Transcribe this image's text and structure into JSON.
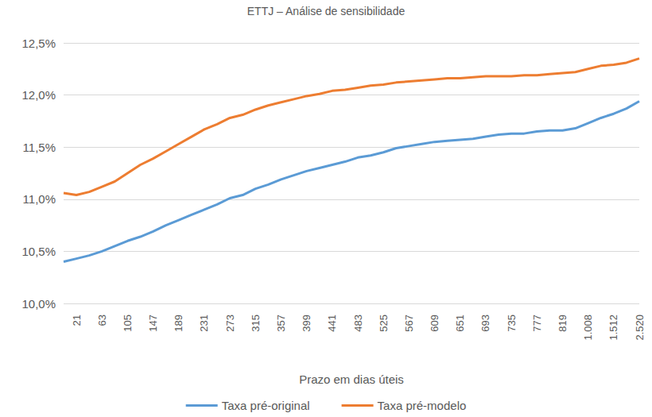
{
  "chart_data": {
    "type": "line",
    "title": "ETTJ – Análise de sensibilidade",
    "x_label": "Prazo em dias úteis",
    "categories": [
      null,
      "21",
      null,
      "63",
      null,
      "105",
      null,
      "147",
      null,
      "189",
      null,
      "231",
      null,
      "273",
      null,
      "315",
      null,
      "357",
      null,
      "399",
      null,
      "441",
      null,
      "483",
      null,
      "525",
      null,
      "567",
      null,
      "609",
      null,
      "651",
      null,
      "693",
      null,
      "735",
      null,
      "777",
      null,
      "819",
      null,
      "1.008",
      null,
      "1.512",
      null,
      "2.520"
    ],
    "series": [
      {
        "name": "Taxa pré-original",
        "color": "#5b9bd5",
        "values": [
          10.4,
          10.43,
          10.46,
          10.5,
          10.55,
          10.6,
          10.64,
          10.69,
          10.75,
          10.8,
          10.85,
          10.9,
          10.95,
          11.01,
          11.04,
          11.1,
          11.14,
          11.19,
          11.23,
          11.27,
          11.3,
          11.33,
          11.36,
          11.4,
          11.42,
          11.45,
          11.49,
          11.51,
          11.53,
          11.55,
          11.56,
          11.57,
          11.58,
          11.6,
          11.62,
          11.63,
          11.63,
          11.65,
          11.66,
          11.66,
          11.68,
          11.73,
          11.78,
          11.82,
          11.87,
          11.94
        ]
      },
      {
        "name": "Taxa pré-modelo",
        "color": "#ed7d31",
        "values": [
          11.06,
          11.04,
          11.07,
          11.12,
          11.17,
          11.25,
          11.33,
          11.39,
          11.46,
          11.53,
          11.6,
          11.67,
          11.72,
          11.78,
          11.81,
          11.86,
          11.9,
          11.93,
          11.96,
          11.99,
          12.01,
          12.04,
          12.05,
          12.07,
          12.09,
          12.1,
          12.12,
          12.13,
          12.14,
          12.15,
          12.16,
          12.16,
          12.17,
          12.18,
          12.18,
          12.18,
          12.19,
          12.19,
          12.2,
          12.21,
          12.22,
          12.25,
          12.28,
          12.29,
          12.31,
          12.35
        ]
      }
    ],
    "ylim": [
      10,
      12.5
    ],
    "yticks": [
      {
        "value": 10,
        "label": "10,0%"
      },
      {
        "value": 10.5,
        "label": "10,5%"
      },
      {
        "value": 11,
        "label": "11,0%"
      },
      {
        "value": 11.5,
        "label": "11,5%"
      },
      {
        "value": 12,
        "label": "12,0%"
      },
      {
        "value": 12.5,
        "label": "12,5%"
      }
    ],
    "grid": true,
    "legend": "bottom"
  }
}
